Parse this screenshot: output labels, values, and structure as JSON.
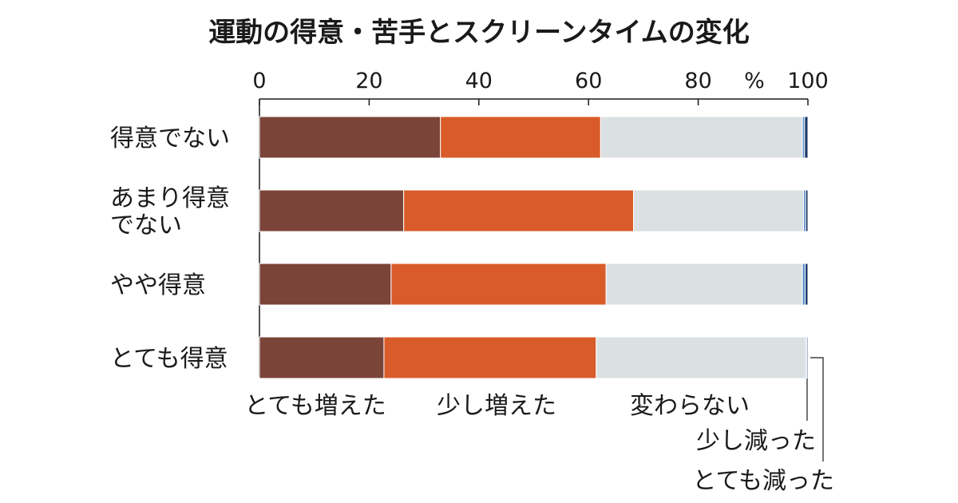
{
  "chart_data": {
    "type": "bar",
    "orientation": "horizontal",
    "stacked": true,
    "title": "運動の得意・苦手とスクリーンタイムの変化",
    "unit_label": "%",
    "xlim": [
      0,
      100
    ],
    "x_ticks": [
      "0",
      "20",
      "40",
      "60",
      "80",
      "100"
    ],
    "categories": [
      [
        "得意でない"
      ],
      [
        "あまり得意",
        "でない"
      ],
      [
        "やや得意"
      ],
      [
        "とても得意"
      ]
    ],
    "series": [
      {
        "name": "とても増えた",
        "color": "#7b4438",
        "values": [
          33.0,
          26.3,
          24.0,
          22.7
        ]
      },
      {
        "name": "少し増えた",
        "color": "#d95b29",
        "values": [
          29.2,
          41.9,
          39.2,
          38.7
        ]
      },
      {
        "name": "変わらない",
        "color": "#dbe0e3",
        "values": [
          36.8,
          31.0,
          35.8,
          38.2
        ]
      },
      {
        "name": "少し減った",
        "color": "#5b8fcf",
        "values": [
          0.4,
          0.4,
          0.5,
          0.2
        ]
      },
      {
        "name": "とても減った",
        "color": "#1c3563",
        "values": [
          0.6,
          0.4,
          0.5,
          0.2
        ]
      }
    ],
    "grid": false,
    "legend_placement": "bottom"
  }
}
